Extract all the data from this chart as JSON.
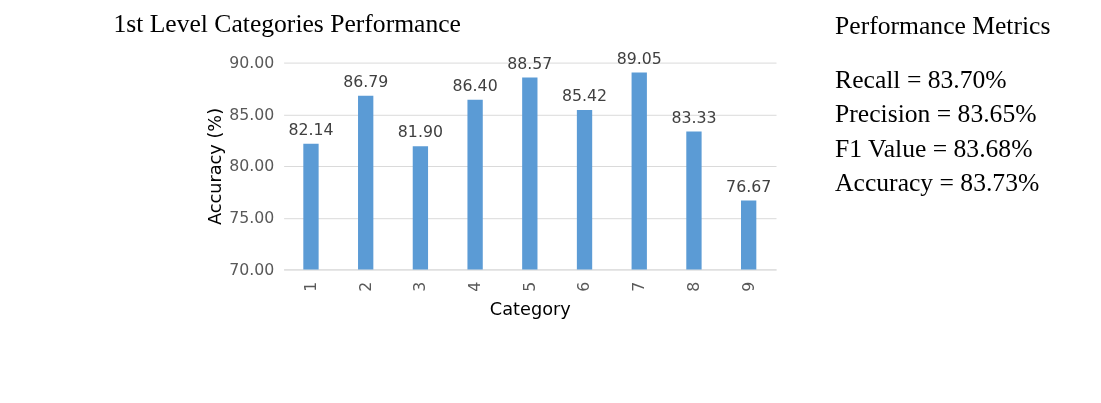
{
  "chart_data": [
    {
      "type": "bar",
      "title": "1st Level Categories Performance",
      "xlabel": "Category",
      "ylabel": "Accuracy (%)",
      "categories": [
        "1",
        "2",
        "3",
        "4",
        "5",
        "6",
        "7",
        "8",
        "9"
      ],
      "values": [
        82.14,
        86.79,
        81.9,
        86.4,
        88.57,
        85.42,
        89.05,
        83.33,
        76.67
      ],
      "value_labels": [
        "82.14",
        "86.79",
        "81.90",
        "86.40",
        "88.57",
        "85.42",
        "89.05",
        "83.33",
        "76.67"
      ],
      "color": "#5b9bd5",
      "ylim": [
        70,
        90
      ],
      "yticks": [
        {
          "value": 70,
          "label": "70.00"
        },
        {
          "value": 75,
          "label": "75.00"
        },
        {
          "value": 80,
          "label": "80.00"
        },
        {
          "value": 85,
          "label": "85.00"
        },
        {
          "value": 90,
          "label": "90.00"
        }
      ],
      "grid": "y"
    },
    {
      "type": "other",
      "title": "Performance Metrics",
      "annotations": [
        "Recall = 83.70%",
        "Precision = 83.65%",
        "F1 Value = 83.68%",
        "Accuracy = 83.73%"
      ]
    }
  ]
}
